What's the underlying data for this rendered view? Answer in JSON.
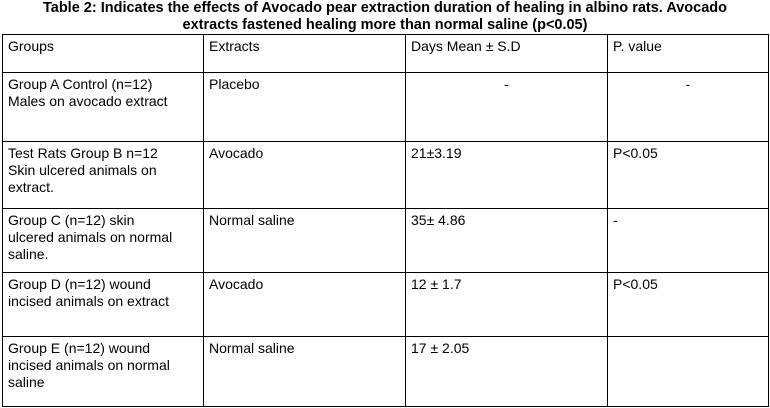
{
  "caption": {
    "line1": "Table 2: Indicates the effects of Avocado pear extraction duration of healing in albino rats. Avocado",
    "line2": "extracts fastened healing more than normal saline (p<0.05)"
  },
  "table": {
    "headers": [
      "Groups",
      "Extracts",
      "Days Mean ± S.D",
      "P. value"
    ],
    "rows": [
      {
        "group": [
          "Group A Control (n=12)",
          "Males on avocado extract"
        ],
        "extract": "Placebo",
        "days": "-",
        "p": "-"
      },
      {
        "group": [
          "Test Rats Group B n=12",
          "Skin ulcered animals on",
          "extract."
        ],
        "extract": "Avocado",
        "days": "21±3.19",
        "p": "P<0.05"
      },
      {
        "group": [
          "Group C (n=12) skin",
          "ulcered animals on normal",
          "saline."
        ],
        "extract": "Normal saline",
        "days": "35± 4.86",
        "p": "-"
      },
      {
        "group": [
          "Group D (n=12) wound",
          "incised animals on extract"
        ],
        "extract": "Avocado",
        "days": "12 ± 1.7",
        "p": "P<0.05"
      },
      {
        "group": [
          "Group E (n=12) wound",
          "incised animals on normal",
          "saline"
        ],
        "extract": "Normal saline",
        "days": "17 ± 2.05",
        "p": ""
      }
    ]
  }
}
